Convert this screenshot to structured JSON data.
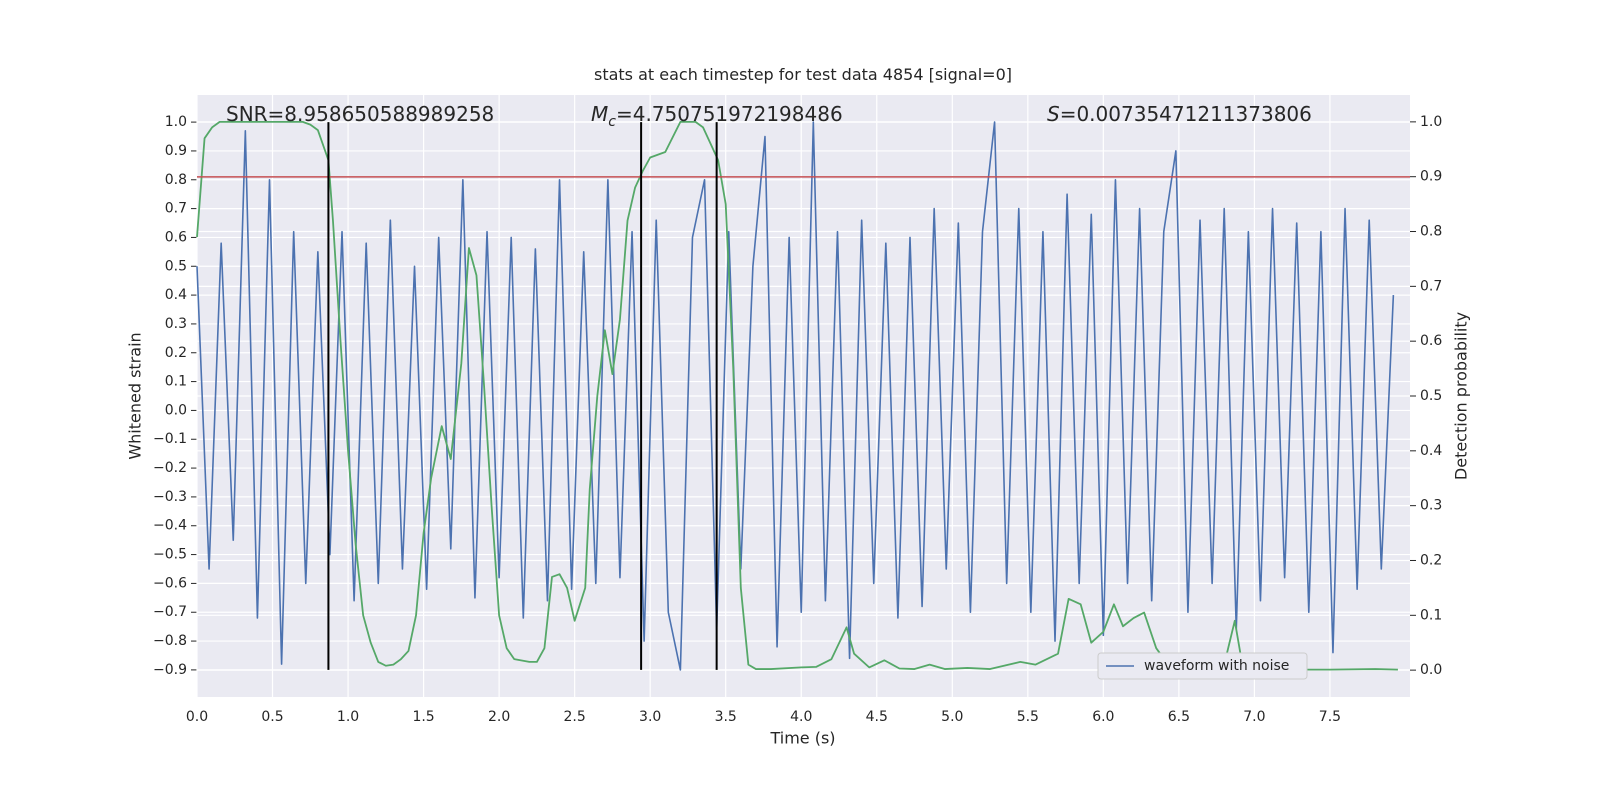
{
  "chart_data": {
    "type": "line",
    "title": "stats at each timestep for test data 4854 [signal=0]",
    "xlabel": "Time (s)",
    "ylabel": "Whitened strain",
    "y2label": "Detection probability",
    "annotations": [
      "SNR=8.958650588989258",
      [
        "M",
        "c",
        "=4.750751972198486"
      ],
      [
        "S",
        "=0.00735471211373806"
      ]
    ],
    "xlim": [
      0,
      8.03
    ],
    "ylim": [
      -0.994,
      1.094
    ],
    "y2lim": [
      -0.049,
      1.049
    ],
    "xticks": [
      {
        "value": 0,
        "label": "0.0"
      },
      0.5,
      {
        "value": 1,
        "label": "1.0"
      },
      1.5,
      {
        "value": 2,
        "label": "2.0"
      },
      2.5,
      {
        "value": 3,
        "label": "3.0"
      },
      3.5,
      {
        "value": 4,
        "label": "4.0"
      },
      4.5,
      {
        "value": 5,
        "label": "5.0"
      },
      5.5,
      {
        "value": 6,
        "label": "6.0"
      },
      6.5,
      {
        "value": 7,
        "label": "7.0"
      },
      7.5
    ],
    "yticks": [
      {
        "value": -0.9,
        "label": "−0.9"
      },
      {
        "value": -0.8,
        "label": "−0.8"
      },
      {
        "value": -0.7,
        "label": "−0.7"
      },
      {
        "value": -0.6,
        "label": "−0.6"
      },
      {
        "value": -0.5,
        "label": "−0.5"
      },
      {
        "value": -0.4,
        "label": "−0.4"
      },
      {
        "value": -0.3,
        "label": "−0.3"
      },
      {
        "value": -0.2,
        "label": "−0.2"
      },
      {
        "value": -0.1,
        "label": "−0.1"
      },
      {
        "value": 0,
        "label": "0.0"
      },
      0.1,
      0.2,
      0.3,
      0.4,
      0.5,
      0.6,
      0.7,
      0.8,
      0.9,
      {
        "value": 1,
        "label": "1.0"
      }
    ],
    "y2ticks": [
      {
        "value": 0,
        "label": "0.0"
      },
      0.1,
      0.2,
      0.3,
      0.4,
      0.5,
      0.6,
      0.7,
      0.8,
      0.9,
      {
        "value": 1,
        "label": "1.0"
      }
    ],
    "grid": true,
    "legend": "lower right",
    "hline": {
      "y": 0.81,
      "color": "#c44e52"
    },
    "vlines": {
      "x": [
        0.87,
        2.94,
        3.44
      ],
      "ymin": -0.9,
      "ymax": 1.0,
      "color": "#000000"
    },
    "series": [
      {
        "name": "waveform with noise",
        "color": "#4c72b0",
        "x": [
          0,
          0.08,
          0.16,
          0.24,
          0.32,
          0.4,
          0.48,
          0.56,
          0.64,
          0.72,
          0.8,
          0.88,
          0.96,
          1.04,
          1.12,
          1.2,
          1.28,
          1.36,
          1.44,
          1.52,
          1.6,
          1.68,
          1.76,
          1.84,
          1.92,
          2,
          2.08,
          2.16,
          2.24,
          2.32,
          2.4,
          2.48,
          2.56,
          2.64,
          2.72,
          2.8,
          2.88,
          2.96,
          3.04,
          3.12,
          3.2,
          3.28,
          3.36,
          3.44,
          3.52,
          3.6,
          3.68,
          3.76,
          3.84,
          3.92,
          4,
          4.08,
          4.16,
          4.24,
          4.32,
          4.4,
          4.48,
          4.56,
          4.64,
          4.72,
          4.8,
          4.88,
          4.96,
          5.04,
          5.12,
          5.2,
          5.28,
          5.36,
          5.44,
          5.52,
          5.6,
          5.68,
          5.76,
          5.84,
          5.92,
          6,
          6.08,
          6.16,
          6.24,
          6.32,
          6.4,
          6.48,
          6.56,
          6.64,
          6.72,
          6.8,
          6.88,
          6.96,
          7.04,
          7.12,
          7.2,
          7.28,
          7.36,
          7.44,
          7.52,
          7.6,
          7.68,
          7.76,
          7.84,
          7.92
        ],
        "values": [
          0.5,
          -0.55,
          0.58,
          -0.45,
          0.97,
          -0.72,
          0.8,
          -0.88,
          0.62,
          -0.6,
          0.55,
          -0.5,
          0.62,
          -0.66,
          0.58,
          -0.6,
          0.66,
          -0.55,
          0.5,
          -0.62,
          0.6,
          -0.48,
          0.8,
          -0.65,
          0.62,
          -0.58,
          0.6,
          -0.72,
          0.56,
          -0.66,
          0.8,
          -0.62,
          0.55,
          -0.6,
          0.8,
          -0.58,
          0.62,
          -0.8,
          0.66,
          -0.7,
          -0.9,
          0.6,
          0.8,
          -0.76,
          0.62,
          -0.55,
          0.5,
          0.95,
          -0.82,
          0.6,
          -0.7,
          1.0,
          -0.66,
          0.62,
          -0.86,
          0.66,
          -0.6,
          0.58,
          -0.72,
          0.6,
          -0.68,
          0.7,
          -0.55,
          0.65,
          -0.7,
          0.62,
          1.0,
          -0.6,
          0.7,
          -0.7,
          0.62,
          -0.8,
          0.75,
          -0.6,
          0.68,
          -0.78,
          0.8,
          -0.6,
          0.7,
          -0.66,
          0.62,
          0.9,
          -0.7,
          0.66,
          -0.6,
          0.7,
          -0.76,
          0.62,
          -0.66,
          0.7,
          -0.58,
          0.65,
          -0.7,
          0.62,
          -0.84,
          0.7,
          -0.62,
          0.66,
          -0.55,
          0.4
        ]
      },
      {
        "color": "#55a868",
        "axis": "y2",
        "x": [
          0,
          0.05,
          0.1,
          0.15,
          0.2,
          0.7,
          0.75,
          0.8,
          0.87,
          0.9,
          0.95,
          1,
          1.05,
          1.1,
          1.15,
          1.2,
          1.25,
          1.3,
          1.35,
          1.4,
          1.45,
          1.5,
          1.55,
          1.62,
          1.68,
          1.75,
          1.8,
          1.85,
          1.9,
          1.95,
          2,
          2.05,
          2.1,
          2.2,
          2.25,
          2.3,
          2.35,
          2.4,
          2.45,
          2.5,
          2.57,
          2.6,
          2.65,
          2.7,
          2.75,
          2.8,
          2.85,
          2.9,
          2.95,
          3,
          3.05,
          3.1,
          3.2,
          3.3,
          3.35,
          3.4,
          3.45,
          3.5,
          3.55,
          3.6,
          3.65,
          3.7,
          3.8,
          4,
          4.1,
          4.2,
          4.3,
          4.35,
          4.45,
          4.55,
          4.65,
          4.75,
          4.85,
          4.95,
          5.1,
          5.25,
          5.45,
          5.55,
          5.7,
          5.77,
          5.85,
          5.92,
          6,
          6.07,
          6.13,
          6.2,
          6.27,
          6.35,
          6.45,
          6.6,
          6.75,
          6.8,
          6.87,
          6.92,
          7,
          7.1,
          7.2,
          7.5,
          7.8,
          7.95
        ],
        "values": [
          0.79,
          0.97,
          0.99,
          1.0,
          1.0,
          1.0,
          0.995,
          0.985,
          0.93,
          0.82,
          0.6,
          0.4,
          0.23,
          0.1,
          0.05,
          0.015,
          0.008,
          0.01,
          0.02,
          0.035,
          0.1,
          0.25,
          0.35,
          0.445,
          0.385,
          0.56,
          0.77,
          0.72,
          0.52,
          0.3,
          0.1,
          0.04,
          0.02,
          0.015,
          0.015,
          0.04,
          0.17,
          0.175,
          0.15,
          0.09,
          0.15,
          0.33,
          0.5,
          0.62,
          0.54,
          0.64,
          0.82,
          0.88,
          0.91,
          0.935,
          0.94,
          0.945,
          1.0,
          1.0,
          0.99,
          0.96,
          0.93,
          0.85,
          0.55,
          0.15,
          0.01,
          0.002,
          0.002,
          0.005,
          0.006,
          0.02,
          0.078,
          0.03,
          0.005,
          0.018,
          0.003,
          0.002,
          0.01,
          0.002,
          0.004,
          0.002,
          0.015,
          0.01,
          0.03,
          0.13,
          0.12,
          0.05,
          0.07,
          0.12,
          0.08,
          0.095,
          0.105,
          0.04,
          0.002,
          0.002,
          0.002,
          0.01,
          0.09,
          0.01,
          0.002,
          0.008,
          0.001,
          0.001,
          0.002,
          0.001
        ]
      }
    ]
  }
}
